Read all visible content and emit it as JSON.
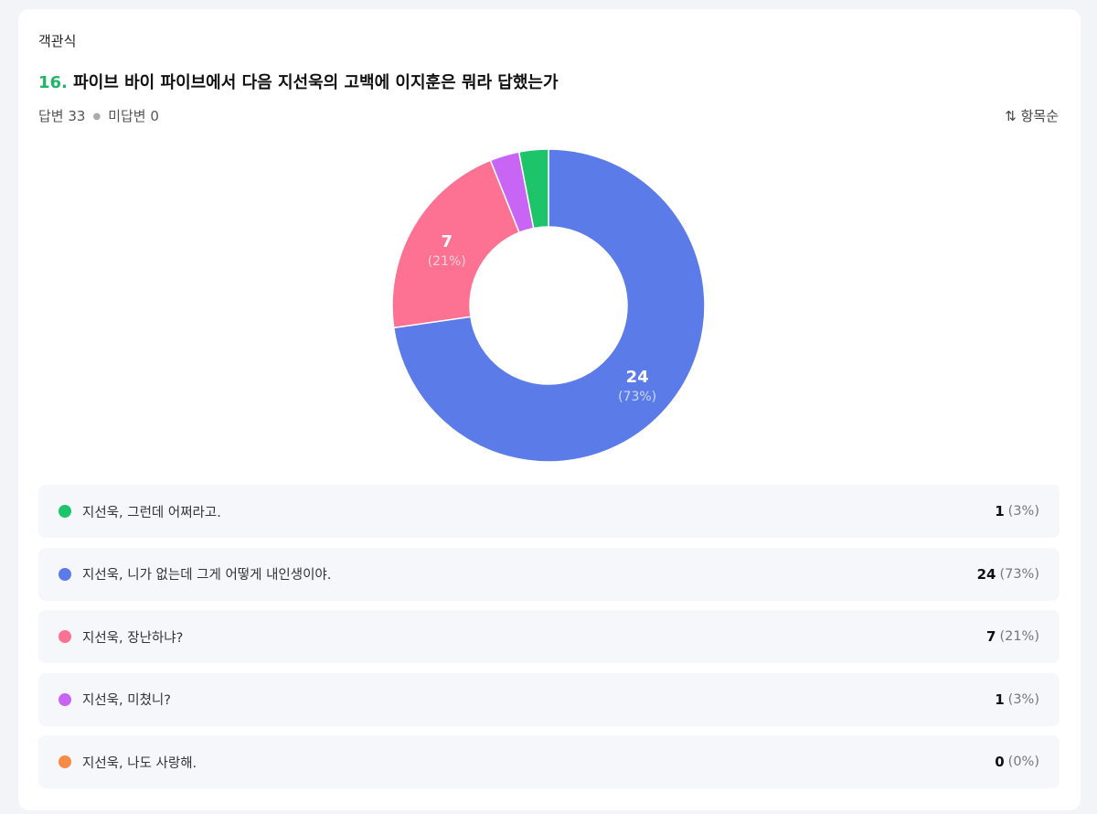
{
  "type_label": "객관식",
  "question": {
    "number": "16.",
    "text": "파이브 바이 파이브에서 다음 지선욱의 고백에 이지훈은 뭐라 답했는가"
  },
  "answered_label": "답변 33",
  "unanswered_label": "미답변 0",
  "sort": {
    "icon": "sort-arrows-icon",
    "label": "항목순"
  },
  "chart_data": {
    "type": "pie",
    "donut": true,
    "categories": [
      "지선욱, 그런데 어쩌라고.",
      "지선욱, 니가 없는데 그게 어떻게 내인생이야.",
      "지선욱, 장난하냐?",
      "지선욱, 미쳤니?",
      "지선욱, 나도 사랑해."
    ],
    "values": [
      1,
      24,
      7,
      1,
      0
    ],
    "percents": [
      "(3%)",
      "(73%)",
      "(21%)",
      "(3%)",
      "(0%)"
    ],
    "colors": [
      "#1ec46a",
      "#5a7be8",
      "#fd7193",
      "#c965f5",
      "#f98b45"
    ],
    "draw_order": [
      1,
      4,
      2,
      3,
      0
    ]
  }
}
